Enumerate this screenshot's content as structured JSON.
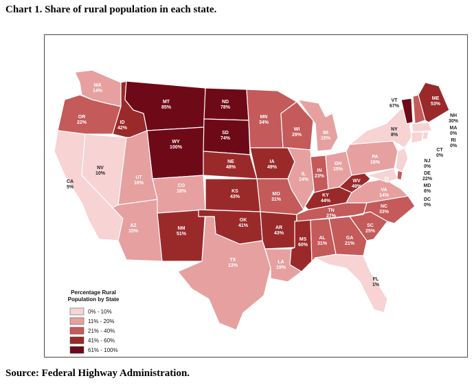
{
  "title": "Chart 1. Share of rural population in each state.",
  "source": "Source: Federal Highway Administration.",
  "colors": {
    "c1": "#f7d3d3",
    "c2": "#e6a0a0",
    "c3": "#c45a5a",
    "c4": "#9a2a2a",
    "c5": "#6e0a18"
  },
  "legend": {
    "title_line1": "Percentage Rural",
    "title_line2": "Population by State",
    "items": [
      {
        "label": "0% - 10%",
        "color": "#f7d3d3"
      },
      {
        "label": "11% - 20%",
        "color": "#e6a0a0"
      },
      {
        "label": "21% - 40%",
        "color": "#c45a5a"
      },
      {
        "label": "41% - 60%",
        "color": "#9a2a2a"
      },
      {
        "label": "61% - 100%",
        "color": "#6e0a18"
      }
    ]
  },
  "states": {
    "WA": {
      "abbr": "WA",
      "value": "14%",
      "cls": 2
    },
    "OR": {
      "abbr": "OR",
      "value": "22%",
      "cls": 3
    },
    "CA": {
      "abbr": "CA",
      "value": "5%",
      "cls": 1
    },
    "NV": {
      "abbr": "NV",
      "value": "10%",
      "cls": 1
    },
    "ID": {
      "abbr": "ID",
      "value": "42%",
      "cls": 4
    },
    "MT": {
      "abbr": "MT",
      "value": "85%",
      "cls": 5
    },
    "WY": {
      "abbr": "WY",
      "value": "100%",
      "cls": 5
    },
    "UT": {
      "abbr": "UT",
      "value": "16%",
      "cls": 2
    },
    "AZ": {
      "abbr": "AZ",
      "value": "15%",
      "cls": 2
    },
    "CO": {
      "abbr": "CO",
      "value": "18%",
      "cls": 2
    },
    "NM": {
      "abbr": "NM",
      "value": "51%",
      "cls": 4
    },
    "ND": {
      "abbr": "ND",
      "value": "78%",
      "cls": 5
    },
    "SD": {
      "abbr": "SD",
      "value": "74%",
      "cls": 5
    },
    "NE": {
      "abbr": "NE",
      "value": "48%",
      "cls": 4
    },
    "KS": {
      "abbr": "KS",
      "value": "43%",
      "cls": 4
    },
    "OK": {
      "abbr": "OK",
      "value": "41%",
      "cls": 4
    },
    "TX": {
      "abbr": "TX",
      "value": "13%",
      "cls": 2
    },
    "MN": {
      "abbr": "MN",
      "value": "34%",
      "cls": 3
    },
    "IA": {
      "abbr": "IA",
      "value": "49%",
      "cls": 4
    },
    "MO": {
      "abbr": "MO",
      "value": "31%",
      "cls": 3
    },
    "AR": {
      "abbr": "AR",
      "value": "43%",
      "cls": 4
    },
    "LA": {
      "abbr": "LA",
      "value": "19%",
      "cls": 2
    },
    "WI": {
      "abbr": "WI",
      "value": "29%",
      "cls": 3
    },
    "IL": {
      "abbr": "IL",
      "value": "14%",
      "cls": 2
    },
    "MI": {
      "abbr": "MI",
      "value": "15%",
      "cls": 2
    },
    "IN": {
      "abbr": "IN",
      "value": "23%",
      "cls": 3
    },
    "OH": {
      "abbr": "OH",
      "value": "15%",
      "cls": 2
    },
    "KY": {
      "abbr": "KY",
      "value": "44%",
      "cls": 4
    },
    "TN": {
      "abbr": "TN",
      "value": "27%",
      "cls": 3
    },
    "MS": {
      "abbr": "MS",
      "value": "60%",
      "cls": 4
    },
    "AL": {
      "abbr": "AL",
      "value": "31%",
      "cls": 3
    },
    "GA": {
      "abbr": "GA",
      "value": "21%",
      "cls": 3
    },
    "FL": {
      "abbr": "FL",
      "value": "1%",
      "cls": 1
    },
    "SC": {
      "abbr": "SC",
      "value": "25%",
      "cls": 3
    },
    "NC": {
      "abbr": "NC",
      "value": "33%",
      "cls": 3
    },
    "VA": {
      "abbr": "VA",
      "value": "14%",
      "cls": 2
    },
    "WV": {
      "abbr": "WV",
      "value": "49%",
      "cls": 4
    },
    "PA": {
      "abbr": "PA",
      "value": "16%",
      "cls": 2
    },
    "NY": {
      "abbr": "NY",
      "value": "8%",
      "cls": 1
    },
    "VT": {
      "abbr": "VT",
      "value": "67%",
      "cls": 5
    },
    "NH": {
      "abbr": "NH",
      "value": "30%",
      "cls": 3
    },
    "ME": {
      "abbr": "ME",
      "value": "53%",
      "cls": 4
    },
    "MA": {
      "abbr": "MA",
      "value": "0%",
      "cls": 1
    },
    "RI": {
      "abbr": "RI",
      "value": "0%",
      "cls": 1
    },
    "CT": {
      "abbr": "CT",
      "value": "0%",
      "cls": 1
    },
    "NJ": {
      "abbr": "NJ",
      "value": "0%",
      "cls": 1
    },
    "DE": {
      "abbr": "DE",
      "value": "22%",
      "cls": 3
    },
    "MD": {
      "abbr": "MD",
      "value": "6%",
      "cls": 1
    },
    "DC": {
      "abbr": "DC",
      "value": "0%",
      "cls": 1
    }
  }
}
